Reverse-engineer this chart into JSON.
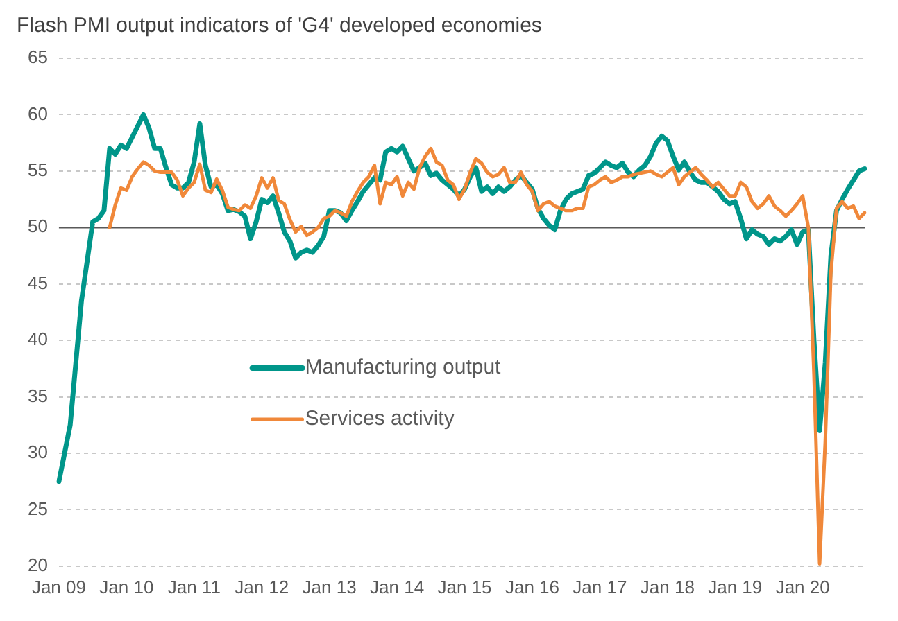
{
  "chart_data": {
    "type": "line",
    "title": "Flash PMI output indicators of 'G4' developed economies",
    "categories": [
      "Jan 09",
      null,
      null,
      null,
      null,
      null,
      null,
      null,
      null,
      null,
      null,
      null,
      "Jan 10",
      null,
      null,
      null,
      null,
      null,
      null,
      null,
      null,
      null,
      null,
      null,
      "Jan 11",
      null,
      null,
      null,
      null,
      null,
      null,
      null,
      null,
      null,
      null,
      null,
      "Jan 12",
      null,
      null,
      null,
      null,
      null,
      null,
      null,
      null,
      null,
      null,
      null,
      "Jan 13",
      null,
      null,
      null,
      null,
      null,
      null,
      null,
      null,
      null,
      null,
      null,
      "Jan 14",
      null,
      null,
      null,
      null,
      null,
      null,
      null,
      null,
      null,
      null,
      null,
      "Jan 15",
      null,
      null,
      null,
      null,
      null,
      null,
      null,
      null,
      null,
      null,
      null,
      "Jan 16",
      null,
      null,
      null,
      null,
      null,
      null,
      null,
      null,
      null,
      null,
      null,
      "Jan 17",
      null,
      null,
      null,
      null,
      null,
      null,
      null,
      null,
      null,
      null,
      null,
      "Jan 18",
      null,
      null,
      null,
      null,
      null,
      null,
      null,
      null,
      null,
      null,
      null,
      "Jan 19",
      null,
      null,
      null,
      null,
      null,
      null,
      null,
      null,
      null,
      null,
      null,
      "Jan 20",
      null,
      null,
      null,
      null,
      null,
      null,
      null,
      null,
      null,
      null,
      null
    ],
    "series": [
      {
        "name": "Manufacturing output",
        "color": "#00968a",
        "values": [
          27.5,
          30,
          32.5,
          38,
          43.5,
          47,
          50.5,
          50.8,
          51.5,
          57,
          56.5,
          57.3,
          57,
          58,
          59,
          60,
          58.8,
          57,
          57,
          55.3,
          53.8,
          53.5,
          53.5,
          54,
          55.8,
          59.2,
          55.5,
          53.6,
          53.8,
          53,
          51.5,
          51.6,
          51.4,
          51,
          49,
          50.5,
          52.5,
          52.2,
          52.8,
          51.3,
          49.6,
          48.8,
          47.3,
          47.8,
          48,
          47.8,
          48.4,
          49.2,
          51.5,
          51.5,
          51.3,
          50.6,
          51.5,
          52.3,
          53.2,
          53.8,
          54.4,
          54.2,
          56.7,
          57,
          56.7,
          57.2,
          56.1,
          55,
          55.3,
          55.7,
          54.6,
          54.8,
          54.2,
          53.8,
          53.4,
          52.8,
          53.4,
          54.5,
          55.3,
          53.2,
          53.6,
          53,
          53.6,
          53.2,
          53.6,
          54.2,
          54.6,
          54,
          53.4,
          51.7,
          50.8,
          50.2,
          49.8,
          51.5,
          52.5,
          53,
          53.2,
          53.4,
          54.6,
          54.8,
          55.3,
          55.8,
          55.5,
          55.3,
          55.7,
          54.9,
          54.5,
          55.1,
          55.5,
          56.3,
          57.5,
          58.1,
          57.7,
          56.3,
          55.1,
          55.8,
          54.9,
          54.2,
          54,
          54,
          53.6,
          53.2,
          52.5,
          52.1,
          52.3,
          50.8,
          49,
          49.8,
          49.4,
          49.2,
          48.5,
          49,
          48.8,
          49.2,
          49.8,
          48.5,
          49.6,
          49.8,
          40,
          32,
          38,
          47.5,
          51.5,
          52.5,
          53.4,
          54.2,
          55,
          55.2
        ]
      },
      {
        "name": "Services activity",
        "color": "#f0883a",
        "values": [
          null,
          null,
          null,
          null,
          null,
          null,
          null,
          null,
          null,
          50,
          52,
          53.5,
          53.3,
          54.5,
          55.2,
          55.8,
          55.5,
          55,
          54.9,
          54.9,
          54.9,
          54.2,
          52.8,
          53.5,
          54,
          55.6,
          53.3,
          53.1,
          54.3,
          53.3,
          51.8,
          51.6,
          51.5,
          52,
          51.7,
          52.8,
          54.4,
          53.5,
          54.4,
          52.4,
          52.1,
          50.7,
          49.6,
          50.1,
          49.3,
          49.6,
          50,
          50.8,
          51,
          51.5,
          51.3,
          51,
          52.3,
          53.2,
          54,
          54.5,
          55.5,
          52.1,
          54,
          53.8,
          54.5,
          52.8,
          54,
          53.4,
          55.3,
          56.3,
          57,
          55.8,
          55.5,
          54.2,
          53.8,
          52.5,
          53.4,
          54.9,
          56.1,
          55.7,
          54.9,
          54.5,
          54.7,
          55.3,
          54,
          54,
          54.9,
          53.8,
          53.2,
          51.5,
          52.1,
          52.3,
          51.9,
          51.7,
          51.5,
          51.5,
          51.7,
          51.7,
          53.6,
          53.8,
          54.2,
          54.5,
          54,
          54.2,
          54.5,
          54.5,
          54.7,
          54.8,
          54.9,
          55,
          54.7,
          54.5,
          54.9,
          55.3,
          53.8,
          54.5,
          54.9,
          55.3,
          54.7,
          54.2,
          53.6,
          54,
          53.4,
          52.8,
          52.8,
          54,
          53.6,
          52.3,
          51.7,
          52.1,
          52.8,
          51.9,
          51.5,
          51,
          51.5,
          52.1,
          52.8,
          50,
          37,
          20.2,
          31,
          46,
          51.7,
          52.3,
          51.7,
          51.9,
          50.8,
          51.3
        ]
      }
    ],
    "ylim": [
      20,
      65
    ],
    "yticks": [
      20,
      25,
      30,
      35,
      40,
      45,
      50,
      55,
      60,
      65
    ],
    "grid": "y",
    "legend": "center",
    "marker": "none",
    "line_style": "solid",
    "ref_lines": [
      {
        "axis": "y",
        "value": 50,
        "color": "#595959"
      }
    ]
  }
}
